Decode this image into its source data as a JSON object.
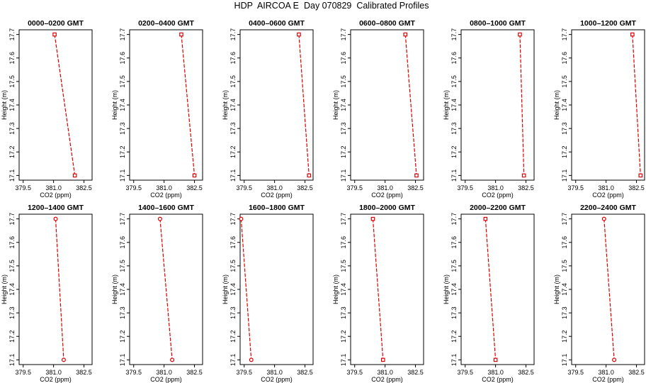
{
  "page": {
    "title": "HDP  AIRCOA E  Day 070829  Calibrated Profiles"
  },
  "colors": {
    "series": "#e00000",
    "axes": "#000000",
    "background": "#ffffff"
  },
  "chart_data": [
    {
      "type": "line",
      "title": "0000–0200 GMT",
      "xlabel": "CO2 (ppm)",
      "ylabel": "Height (m)",
      "xlim": [
        379.3,
        382.9
      ],
      "ylim": [
        17.08,
        17.72
      ],
      "xticks": [
        379.5,
        381.0,
        382.5
      ],
      "xtick_labels": [
        "379.5",
        "381.0",
        "382.5"
      ],
      "yticks": [
        17.1,
        17.2,
        17.3,
        17.4,
        17.5,
        17.6,
        17.7
      ],
      "ytick_labels": [
        "17.1",
        "17.2",
        "17.3",
        "17.4",
        "17.5",
        "17.6",
        "17.7"
      ],
      "grid": false,
      "series": [
        {
          "x": [
            381.05,
            382.05
          ],
          "y": [
            17.7,
            17.1
          ],
          "marker": "open-square"
        }
      ]
    },
    {
      "type": "line",
      "title": "0200–0400 GMT",
      "xlabel": "CO2 (ppm)",
      "ylabel": "Height (m)",
      "xlim": [
        379.3,
        382.9
      ],
      "ylim": [
        17.08,
        17.72
      ],
      "xticks": [
        379.5,
        381.0,
        382.5
      ],
      "xtick_labels": [
        "379.5",
        "381.0",
        "382.5"
      ],
      "yticks": [
        17.1,
        17.2,
        17.3,
        17.4,
        17.5,
        17.6,
        17.7
      ],
      "ytick_labels": [
        "17.1",
        "17.2",
        "17.3",
        "17.4",
        "17.5",
        "17.6",
        "17.7"
      ],
      "grid": false,
      "series": [
        {
          "x": [
            381.85,
            382.5
          ],
          "y": [
            17.7,
            17.1
          ],
          "marker": "open-square"
        }
      ]
    },
    {
      "type": "line",
      "title": "0400–0600 GMT",
      "xlabel": "CO2 (ppm)",
      "ylabel": "Height (m)",
      "xlim": [
        379.3,
        382.9
      ],
      "ylim": [
        17.08,
        17.72
      ],
      "xticks": [
        379.5,
        381.0,
        382.5
      ],
      "xtick_labels": [
        "379.5",
        "381.0",
        "382.5"
      ],
      "yticks": [
        17.1,
        17.2,
        17.3,
        17.4,
        17.5,
        17.6,
        17.7
      ],
      "ytick_labels": [
        "17.1",
        "17.2",
        "17.3",
        "17.4",
        "17.5",
        "17.6",
        "17.7"
      ],
      "grid": false,
      "series": [
        {
          "x": [
            382.2,
            382.7
          ],
          "y": [
            17.7,
            17.1
          ],
          "marker": "open-square"
        }
      ]
    },
    {
      "type": "line",
      "title": "0600–0800 GMT",
      "xlabel": "CO2 (ppm)",
      "ylabel": "Height (m)",
      "xlim": [
        379.3,
        382.9
      ],
      "ylim": [
        17.08,
        17.72
      ],
      "xticks": [
        379.5,
        381.0,
        382.5
      ],
      "xtick_labels": [
        "379.5",
        "381.0",
        "382.5"
      ],
      "yticks": [
        17.1,
        17.2,
        17.3,
        17.4,
        17.5,
        17.6,
        17.7
      ],
      "ytick_labels": [
        "17.1",
        "17.2",
        "17.3",
        "17.4",
        "17.5",
        "17.6",
        "17.7"
      ],
      "grid": false,
      "series": [
        {
          "x": [
            382.0,
            382.55
          ],
          "y": [
            17.7,
            17.1
          ],
          "marker": "open-square"
        }
      ]
    },
    {
      "type": "line",
      "title": "0800–1000 GMT",
      "xlabel": "CO2 (ppm)",
      "ylabel": "Height (m)",
      "xlim": [
        379.3,
        382.9
      ],
      "ylim": [
        17.08,
        17.72
      ],
      "xticks": [
        379.5,
        381.0,
        382.5
      ],
      "xtick_labels": [
        "379.5",
        "381.0",
        "382.5"
      ],
      "yticks": [
        17.1,
        17.2,
        17.3,
        17.4,
        17.5,
        17.6,
        17.7
      ],
      "ytick_labels": [
        "17.1",
        "17.2",
        "17.3",
        "17.4",
        "17.5",
        "17.6",
        "17.7"
      ],
      "grid": false,
      "series": [
        {
          "x": [
            382.2,
            382.4
          ],
          "y": [
            17.7,
            17.1
          ],
          "marker": "open-square"
        }
      ]
    },
    {
      "type": "line",
      "title": "1000–1200 GMT",
      "xlabel": "CO2 (ppm)",
      "ylabel": "Height (m)",
      "xlim": [
        379.3,
        382.9
      ],
      "ylim": [
        17.08,
        17.72
      ],
      "xticks": [
        379.5,
        381.0,
        382.5
      ],
      "xtick_labels": [
        "379.5",
        "381.0",
        "382.5"
      ],
      "yticks": [
        17.1,
        17.2,
        17.3,
        17.4,
        17.5,
        17.6,
        17.7
      ],
      "ytick_labels": [
        "17.1",
        "17.2",
        "17.3",
        "17.4",
        "17.5",
        "17.6",
        "17.7"
      ],
      "grid": false,
      "series": [
        {
          "x": [
            382.3,
            382.7
          ],
          "y": [
            17.7,
            17.1
          ],
          "marker": "open-square"
        }
      ]
    },
    {
      "type": "line",
      "title": "1200–1400 GMT",
      "xlabel": "CO2 (ppm)",
      "ylabel": "Height (m)",
      "xlim": [
        379.3,
        382.9
      ],
      "ylim": [
        17.08,
        17.72
      ],
      "xticks": [
        379.5,
        381.0,
        382.5
      ],
      "xtick_labels": [
        "379.5",
        "381.0",
        "382.5"
      ],
      "yticks": [
        17.1,
        17.2,
        17.3,
        17.4,
        17.5,
        17.6,
        17.7
      ],
      "ytick_labels": [
        "17.1",
        "17.2",
        "17.3",
        "17.4",
        "17.5",
        "17.6",
        "17.7"
      ],
      "grid": false,
      "series": [
        {
          "x": [
            381.1,
            381.5
          ],
          "y": [
            17.7,
            17.1
          ],
          "marker": "open-circle"
        }
      ]
    },
    {
      "type": "line",
      "title": "1400–1600 GMT",
      "xlabel": "CO2 (ppm)",
      "ylabel": "Height (m)",
      "xlim": [
        379.3,
        382.9
      ],
      "ylim": [
        17.08,
        17.72
      ],
      "xticks": [
        379.5,
        381.0,
        382.5
      ],
      "xtick_labels": [
        "379.5",
        "381.0",
        "382.5"
      ],
      "yticks": [
        17.1,
        17.2,
        17.3,
        17.4,
        17.5,
        17.6,
        17.7
      ],
      "ytick_labels": [
        "17.1",
        "17.2",
        "17.3",
        "17.4",
        "17.5",
        "17.6",
        "17.7"
      ],
      "grid": false,
      "series": [
        {
          "x": [
            380.8,
            381.4
          ],
          "y": [
            17.7,
            17.1
          ],
          "marker": "open-circle"
        }
      ]
    },
    {
      "type": "line",
      "title": "1600–1800 GMT",
      "xlabel": "CO2 (ppm)",
      "ylabel": "Height (m)",
      "xlim": [
        379.3,
        382.9
      ],
      "ylim": [
        17.08,
        17.72
      ],
      "xticks": [
        379.5,
        381.0,
        382.5
      ],
      "xtick_labels": [
        "379.5",
        "381.0",
        "382.5"
      ],
      "yticks": [
        17.1,
        17.2,
        17.3,
        17.4,
        17.5,
        17.6,
        17.7
      ],
      "ytick_labels": [
        "17.1",
        "17.2",
        "17.3",
        "17.4",
        "17.5",
        "17.6",
        "17.7"
      ],
      "grid": false,
      "series": [
        {
          "x": [
            379.35,
            379.85
          ],
          "y": [
            17.7,
            17.1
          ],
          "marker": "open-circle"
        }
      ]
    },
    {
      "type": "line",
      "title": "1800–2000 GMT",
      "xlabel": "CO2 (ppm)",
      "ylabel": "Height (m)",
      "xlim": [
        379.3,
        382.9
      ],
      "ylim": [
        17.08,
        17.72
      ],
      "xticks": [
        379.5,
        381.0,
        382.5
      ],
      "xtick_labels": [
        "379.5",
        "381.0",
        "382.5"
      ],
      "yticks": [
        17.1,
        17.2,
        17.3,
        17.4,
        17.5,
        17.6,
        17.7
      ],
      "ytick_labels": [
        "17.1",
        "17.2",
        "17.3",
        "17.4",
        "17.5",
        "17.6",
        "17.7"
      ],
      "grid": false,
      "series": [
        {
          "x": [
            380.4,
            380.9
          ],
          "y": [
            17.7,
            17.1
          ],
          "marker": "open-square"
        }
      ]
    },
    {
      "type": "line",
      "title": "2000–2200 GMT",
      "xlabel": "CO2 (ppm)",
      "ylabel": "Height (m)",
      "xlim": [
        379.3,
        382.9
      ],
      "ylim": [
        17.08,
        17.72
      ],
      "xticks": [
        379.5,
        381.0,
        382.5
      ],
      "xtick_labels": [
        "379.5",
        "381.0",
        "382.5"
      ],
      "yticks": [
        17.1,
        17.2,
        17.3,
        17.4,
        17.5,
        17.6,
        17.7
      ],
      "ytick_labels": [
        "17.1",
        "17.2",
        "17.3",
        "17.4",
        "17.5",
        "17.6",
        "17.7"
      ],
      "grid": false,
      "series": [
        {
          "x": [
            380.5,
            381.0
          ],
          "y": [
            17.7,
            17.1
          ],
          "marker": "open-square"
        }
      ]
    },
    {
      "type": "line",
      "title": "2200–2400 GMT",
      "xlabel": "CO2 (ppm)",
      "ylabel": "Height (m)",
      "xlim": [
        379.3,
        382.9
      ],
      "ylim": [
        17.08,
        17.72
      ],
      "xticks": [
        379.5,
        381.0,
        382.5
      ],
      "xtick_labels": [
        "379.5",
        "381.0",
        "382.5"
      ],
      "yticks": [
        17.1,
        17.2,
        17.3,
        17.4,
        17.5,
        17.6,
        17.7
      ],
      "ytick_labels": [
        "17.1",
        "17.2",
        "17.3",
        "17.4",
        "17.5",
        "17.6",
        "17.7"
      ],
      "grid": false,
      "series": [
        {
          "x": [
            380.9,
            381.4
          ],
          "y": [
            17.7,
            17.1
          ],
          "marker": "open-circle"
        }
      ]
    }
  ]
}
